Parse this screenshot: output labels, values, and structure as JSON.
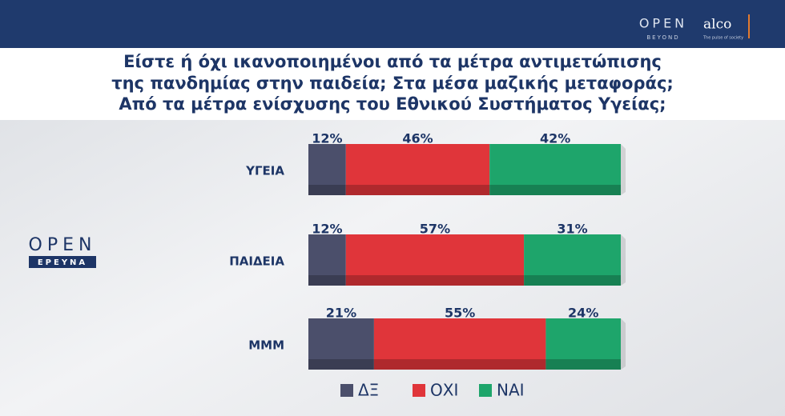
{
  "branding": {
    "header_open": "OPEN",
    "header_beyond": "BEYOND",
    "header_alco": "alco",
    "header_alco_tagline": "The pulse of society",
    "side_open": "OPEN",
    "side_erevna": "ΕΡΕΥΝΑ"
  },
  "chart_data": {
    "type": "stacked-bar-horizontal",
    "title": [
      "Είστε ή όχι ικανοποιημένοι από τα μέτρα αντιμετώπισης",
      "της πανδημίας στην παιδεία; Στα μέσα μαζικής μεταφοράς;",
      "Από τα μέτρα ενίσχυσης του Εθνικού Συστήματος Υγείας;"
    ],
    "categories": [
      "ΥΓΕΙΑ",
      "ΠΑΙΔΕΙΑ",
      "ΜΜΜ"
    ],
    "xlim": [
      0,
      100
    ],
    "series": [
      {
        "name": "ΔΞ",
        "color": "#4b4f6b",
        "values": [
          12,
          12,
          21
        ],
        "value_labels": [
          "12%",
          "12%",
          "21%"
        ]
      },
      {
        "name": "ΟΧΙ",
        "color": "#e0353a",
        "values": [
          46,
          57,
          55
        ],
        "value_labels": [
          "46%",
          "57%",
          "55%"
        ]
      },
      {
        "name": "ΝΑΙ",
        "color": "#1ea56b",
        "values": [
          42,
          31,
          24
        ],
        "value_labels": [
          "42%",
          "31%",
          "24%"
        ]
      }
    ],
    "legend": "bottom"
  }
}
